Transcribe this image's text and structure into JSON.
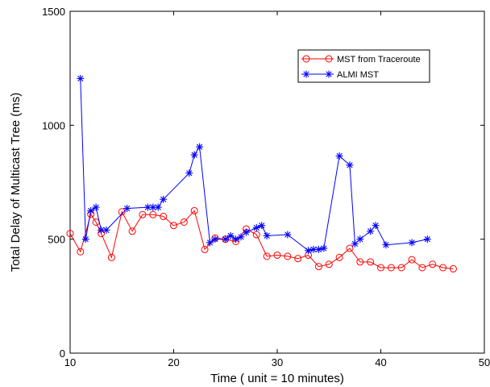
{
  "chart_data": {
    "type": "line",
    "xlabel": "Time ( unit = 10 minutes)",
    "ylabel": "Total Delay of Multicast Tree (ms)",
    "xlim": [
      10,
      50
    ],
    "ylim": [
      0,
      1500
    ],
    "xticks": [
      10,
      20,
      30,
      40,
      50
    ],
    "yticks": [
      0,
      500,
      1000,
      1500
    ],
    "grid": false,
    "legend_position": "top-right",
    "series": [
      {
        "name": "MST from Traceroute",
        "color": "#ff0000",
        "marker": "circle",
        "x": [
          10,
          11,
          12,
          12.5,
          13,
          14,
          15,
          16,
          17,
          18,
          19,
          20,
          21,
          22,
          23,
          24,
          25,
          26,
          27,
          28,
          29,
          30,
          31,
          32,
          33,
          34,
          35,
          36,
          37,
          38,
          39,
          40,
          41,
          42,
          43,
          44,
          45,
          46,
          47
        ],
        "values": [
          525,
          445,
          610,
          575,
          525,
          420,
          620,
          535,
          608,
          608,
          600,
          560,
          575,
          625,
          455,
          505,
          500,
          490,
          545,
          520,
          425,
          430,
          425,
          415,
          430,
          380,
          390,
          420,
          460,
          400,
          400,
          375,
          375,
          375,
          410,
          375,
          390,
          375,
          370
        ]
      },
      {
        "name": "ALMI MST",
        "color": "#0000ff",
        "marker": "star",
        "x": [
          11,
          11.5,
          12,
          12.5,
          13,
          13.5,
          15.5,
          17.5,
          18,
          18.5,
          19,
          21.5,
          22,
          22.5,
          23.5,
          24,
          25,
          25.5,
          26,
          26.5,
          27,
          28,
          28.5,
          29,
          31,
          33,
          33.5,
          34,
          34.5,
          36,
          37,
          37.5,
          38,
          39,
          39.5,
          40.5,
          43,
          44.5
        ],
        "values": [
          1205,
          500,
          625,
          640,
          540,
          540,
          635,
          640,
          640,
          640,
          675,
          790,
          870,
          905,
          485,
          500,
          500,
          515,
          500,
          510,
          530,
          550,
          560,
          515,
          520,
          450,
          455,
          455,
          460,
          865,
          825,
          480,
          500,
          535,
          560,
          475,
          485,
          500
        ]
      }
    ]
  }
}
